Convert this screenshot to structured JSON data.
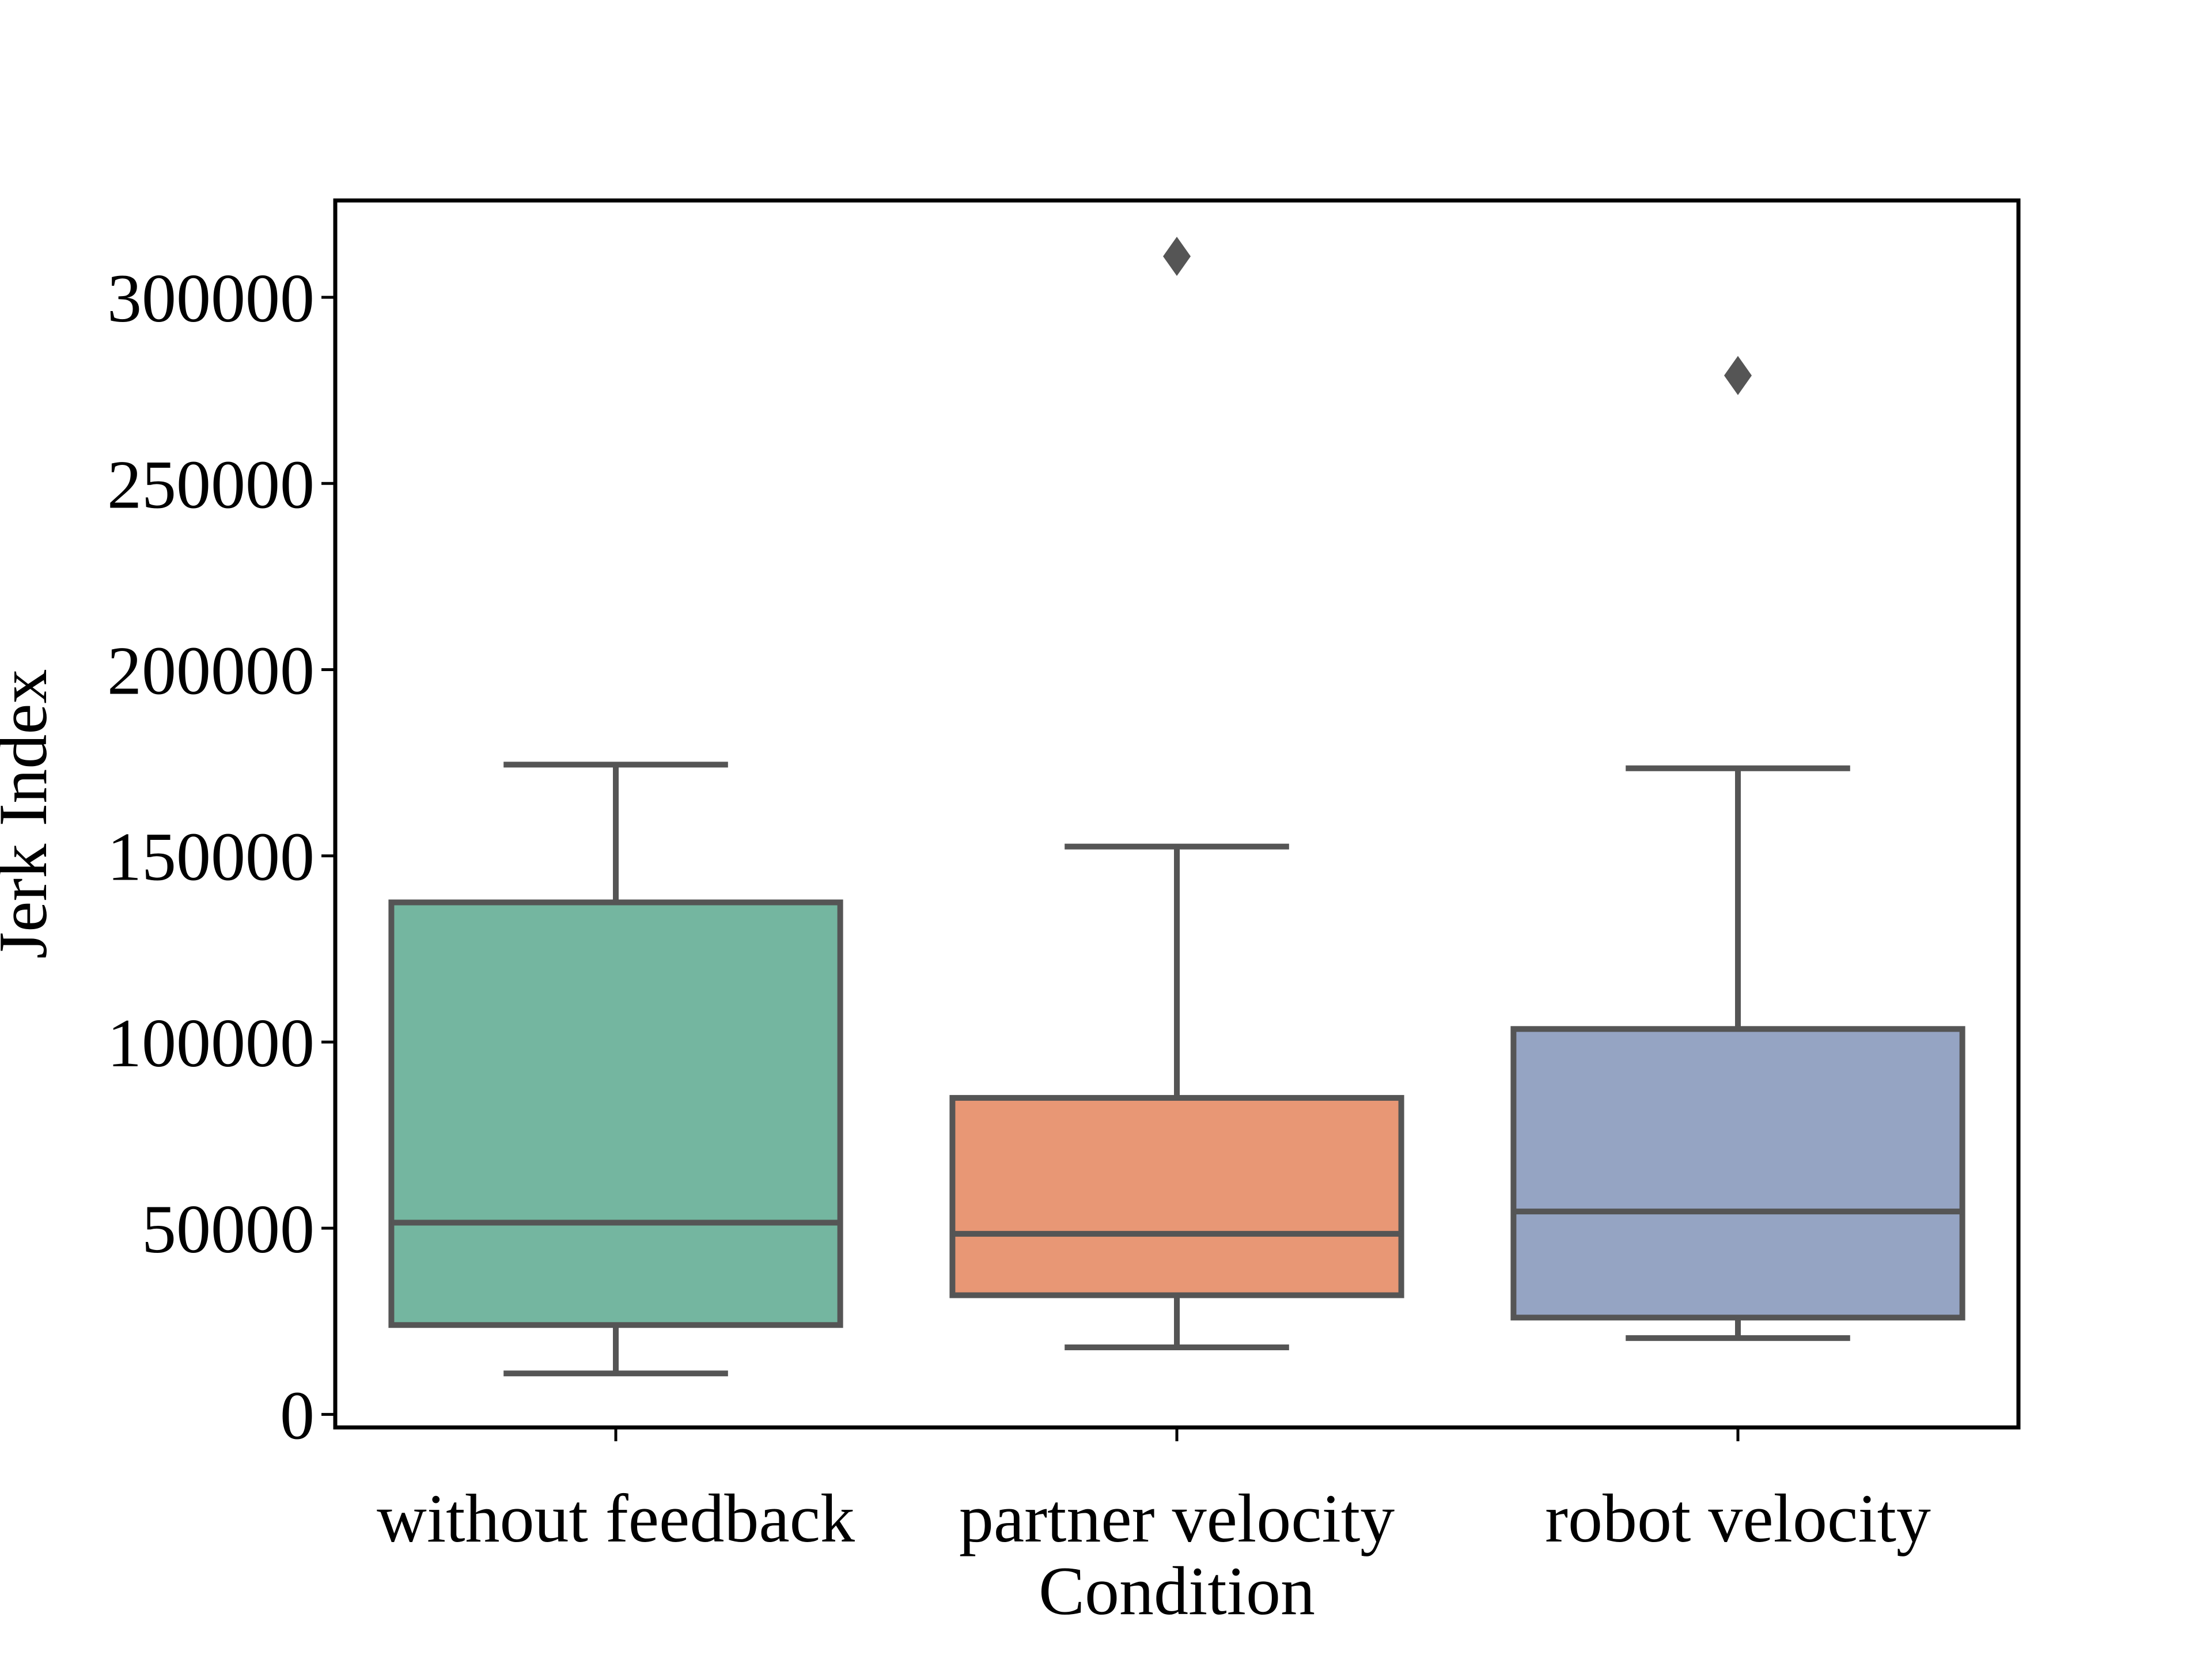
{
  "chart_data": {
    "type": "box",
    "title": "",
    "xlabel": "Condition",
    "ylabel": "Jerk Index",
    "ylim": [
      -3500,
      326000
    ],
    "yticks": [
      0,
      50000,
      100000,
      150000,
      200000,
      250000,
      300000
    ],
    "ytick_labels": [
      "0",
      "50000",
      "100000",
      "150000",
      "200000",
      "250000",
      "300000"
    ],
    "grid": false,
    "categories": [
      "without feedback",
      "partner velocity",
      "robot velocity"
    ],
    "series": [
      {
        "category": "without feedback",
        "whisker_low": 11000,
        "q1": 24000,
        "median": 51500,
        "q3": 137500,
        "whisker_high": 174500,
        "outliers": []
      },
      {
        "category": "partner velocity",
        "whisker_low": 18000,
        "q1": 32000,
        "median": 48500,
        "q3": 85000,
        "whisker_high": 152500,
        "outliers": [
          311000
        ]
      },
      {
        "category": "robot velocity",
        "whisker_low": 20500,
        "q1": 26000,
        "median": 54500,
        "q3": 103500,
        "whisker_high": 173500,
        "outliers": [
          279000
        ]
      }
    ],
    "colors": {
      "boxes": [
        "#74b6a0",
        "#e89775",
        "#95a4c3"
      ],
      "lines": "#555555",
      "axes": "#000000"
    }
  }
}
